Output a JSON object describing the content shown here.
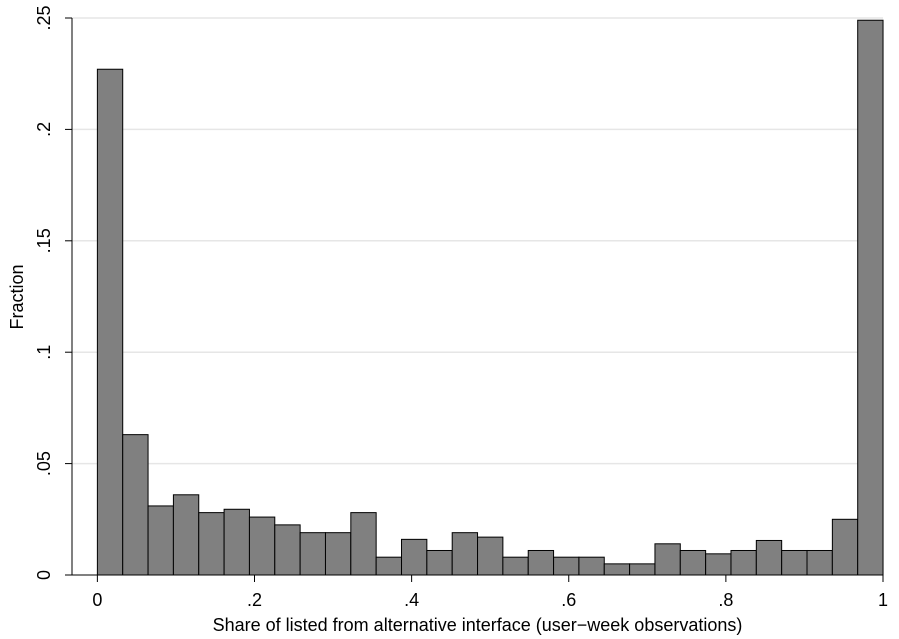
{
  "chart_data": {
    "type": "bar",
    "subtype": "histogram",
    "xlabel": "Share of listed from alternative interface (user−week observations)",
    "ylabel": "Fraction",
    "xlim": [
      -0.0323,
      1.0
    ],
    "ylim": [
      0,
      0.25
    ],
    "x_ticks": [
      {
        "value": 0,
        "label": "0"
      },
      {
        "value": 0.2,
        "label": ".2"
      },
      {
        "value": 0.4,
        "label": ".4"
      },
      {
        "value": 0.6,
        "label": ".6"
      },
      {
        "value": 0.8,
        "label": ".8"
      },
      {
        "value": 1,
        "label": "1"
      }
    ],
    "y_ticks": [
      {
        "value": 0,
        "label": "0"
      },
      {
        "value": 0.05,
        "label": ".05"
      },
      {
        "value": 0.1,
        "label": ".1"
      },
      {
        "value": 0.15,
        "label": ".15"
      },
      {
        "value": 0.2,
        "label": ".2"
      },
      {
        "value": 0.25,
        "label": ".25"
      }
    ],
    "grid": true,
    "bin_width": 0.03226,
    "bins_start": -0.0,
    "values": [
      0.227,
      0.063,
      0.031,
      0.036,
      0.028,
      0.0295,
      0.026,
      0.0225,
      0.019,
      0.019,
      0.028,
      0.008,
      0.016,
      0.011,
      0.019,
      0.017,
      0.008,
      0.011,
      0.008,
      0.008,
      0.005,
      0.005,
      0.014,
      0.011,
      0.0095,
      0.011,
      0.0155,
      0.011,
      0.011,
      0.025,
      0.249
    ],
    "bar_color": "#808080",
    "bar_edge_color": "#000000",
    "grid_color": "#e6e6e6"
  }
}
